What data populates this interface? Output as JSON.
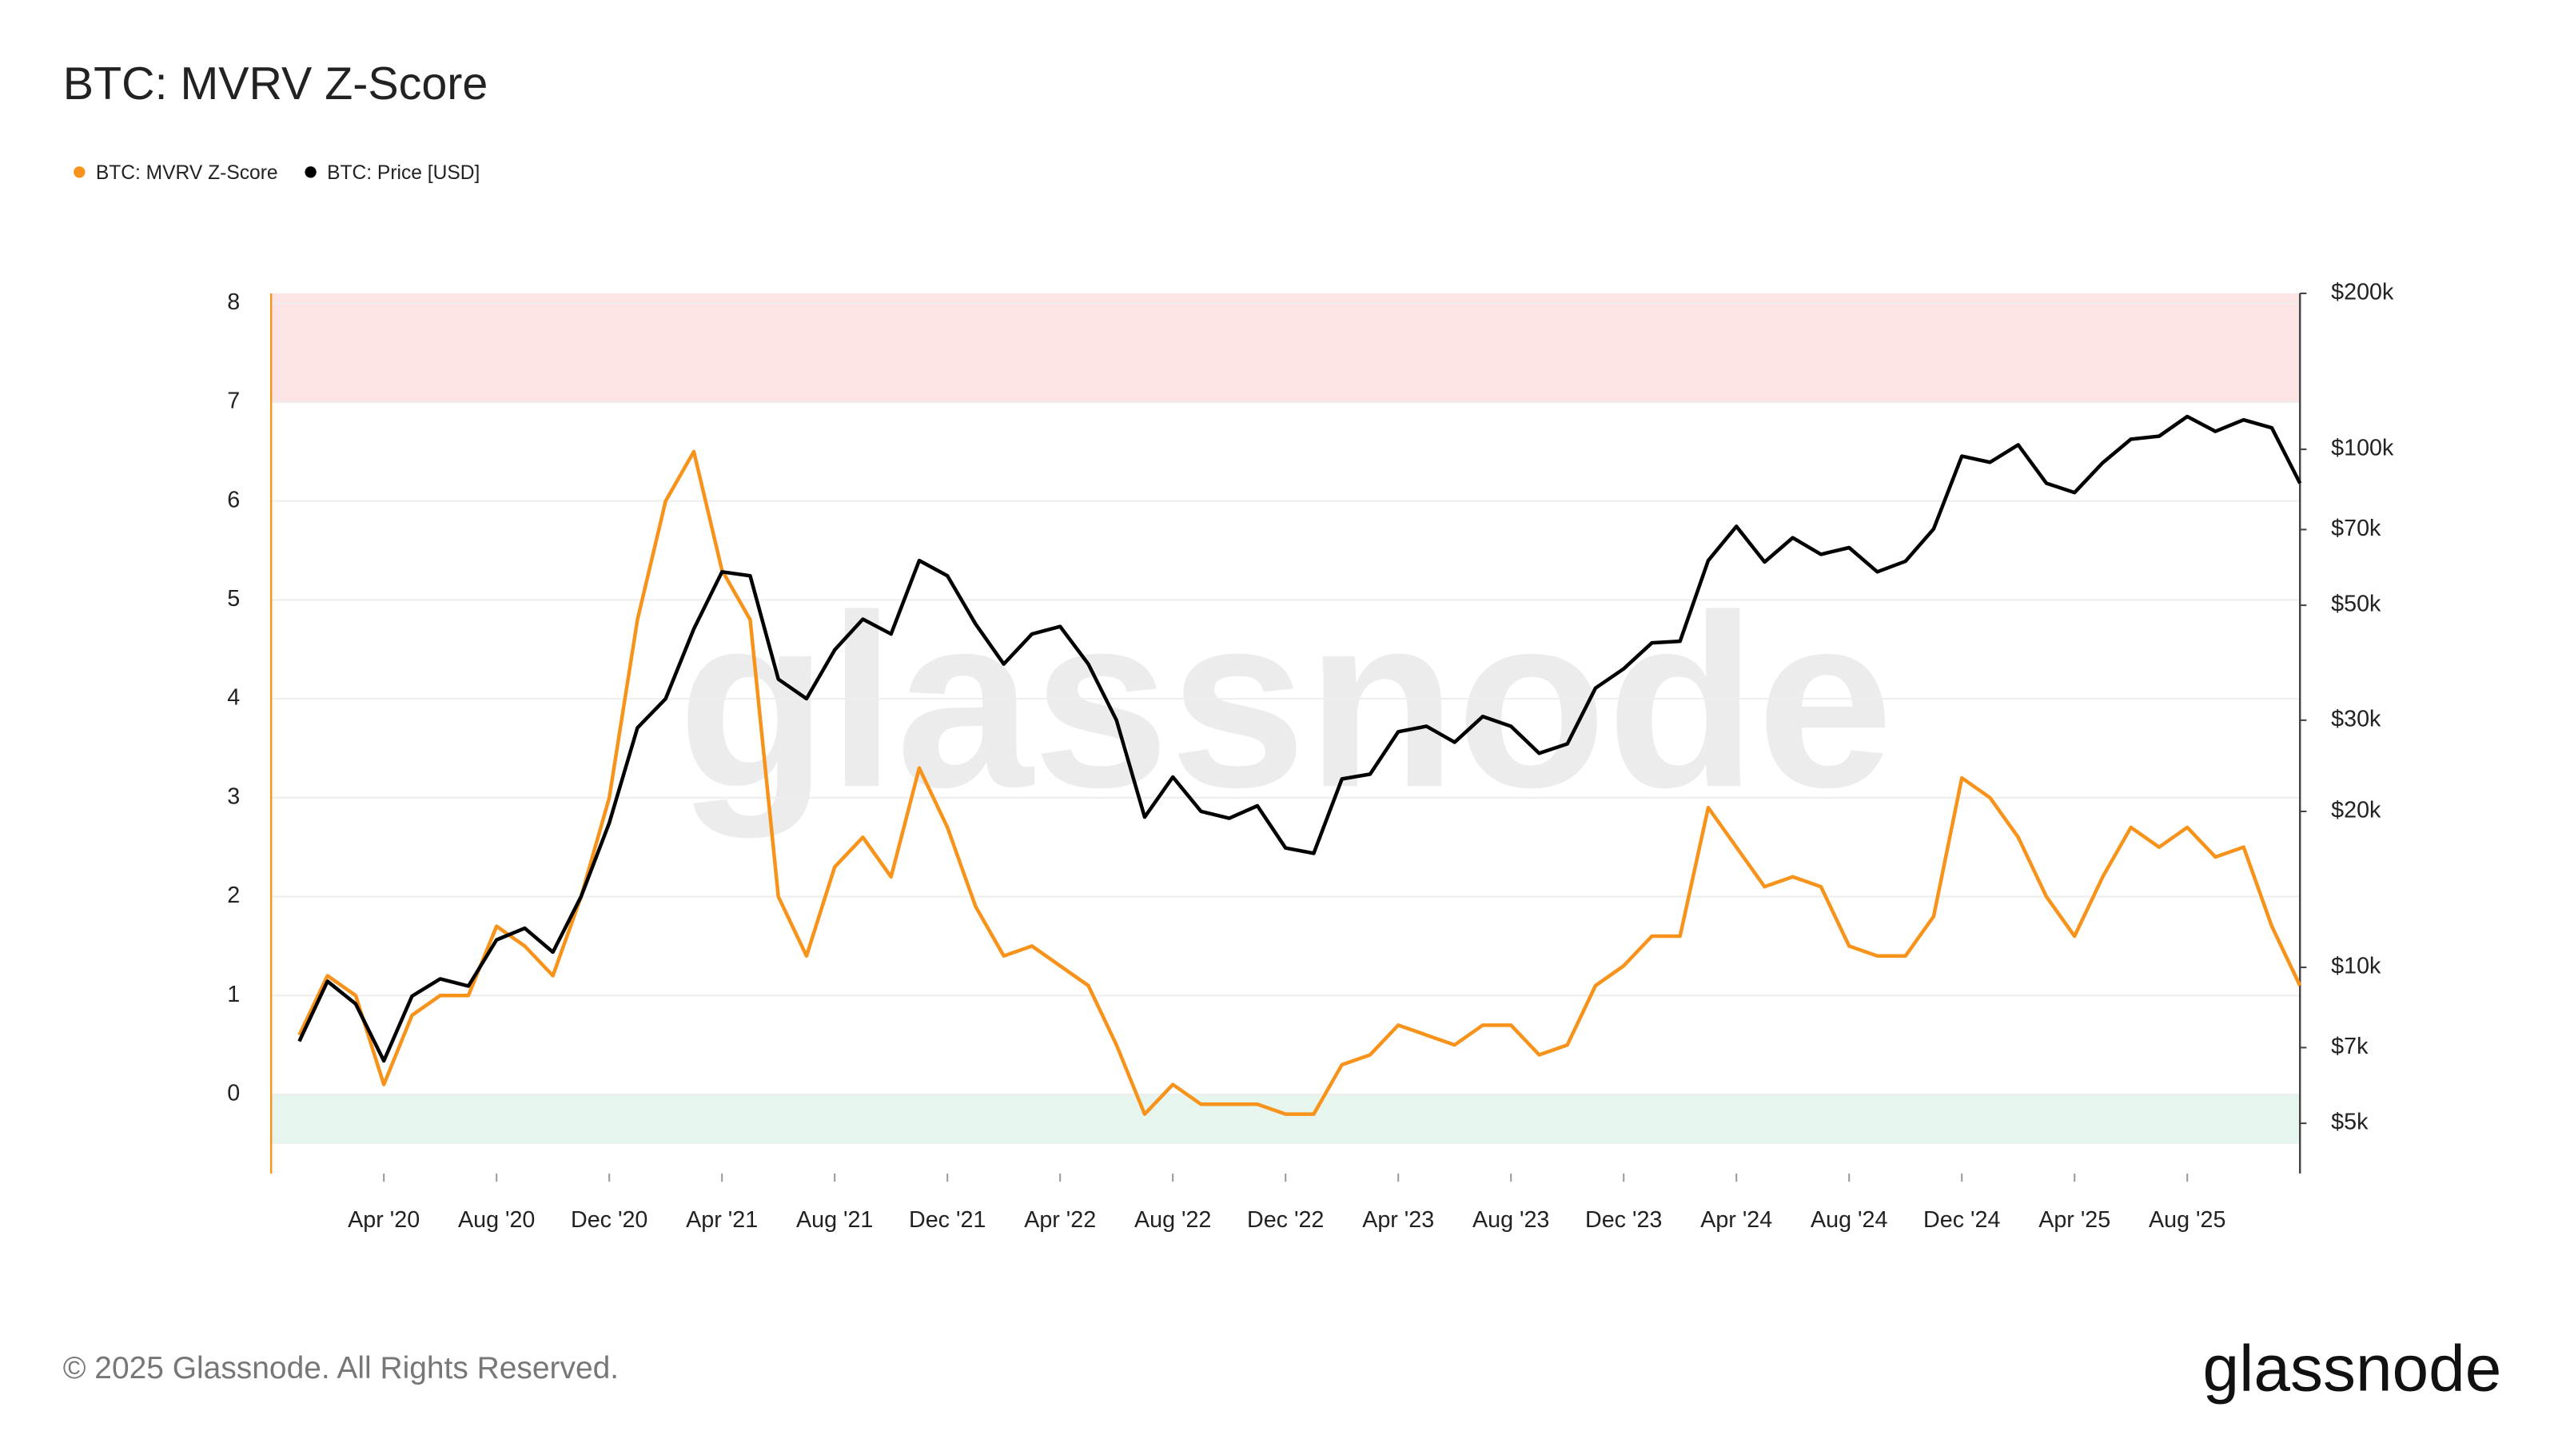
{
  "chart_data": {
    "type": "line",
    "title": "BTC: MVRV Z-Score",
    "watermark": "glassnode",
    "logo": "glassnode",
    "footer": "© 2025 Glassnode. All Rights Reserved.",
    "x": [
      "2020-01",
      "2020-02",
      "2020-03",
      "2020-04",
      "2020-05",
      "2020-06",
      "2020-07",
      "2020-08",
      "2020-09",
      "2020-10",
      "2020-11",
      "2020-12",
      "2021-01",
      "2021-02",
      "2021-03",
      "2021-04",
      "2021-05",
      "2021-06",
      "2021-07",
      "2021-08",
      "2021-09",
      "2021-10",
      "2021-11",
      "2021-12",
      "2022-01",
      "2022-02",
      "2022-03",
      "2022-04",
      "2022-05",
      "2022-06",
      "2022-07",
      "2022-08",
      "2022-09",
      "2022-10",
      "2022-11",
      "2022-12",
      "2023-01",
      "2023-02",
      "2023-03",
      "2023-04",
      "2023-05",
      "2023-06",
      "2023-07",
      "2023-08",
      "2023-09",
      "2023-10",
      "2023-11",
      "2023-12",
      "2024-01",
      "2024-02",
      "2024-03",
      "2024-04",
      "2024-05",
      "2024-06",
      "2024-07",
      "2024-08",
      "2024-09",
      "2024-10",
      "2024-11",
      "2024-12",
      "2025-01",
      "2025-02",
      "2025-03",
      "2025-04",
      "2025-05",
      "2025-06",
      "2025-07",
      "2025-08",
      "2025-09",
      "2025-10",
      "2025-11",
      "2025-12"
    ],
    "series": [
      {
        "name": "BTC: MVRV Z-Score",
        "color": "#f7931a",
        "axis": "y",
        "values": [
          0.6,
          1.2,
          1.0,
          0.1,
          0.8,
          1.0,
          1.0,
          1.7,
          1.5,
          1.2,
          2.0,
          3.0,
          4.8,
          6.0,
          6.5,
          5.3,
          4.8,
          2.0,
          1.4,
          2.3,
          2.6,
          2.2,
          3.3,
          2.7,
          1.9,
          1.4,
          1.5,
          1.3,
          1.1,
          0.5,
          -0.2,
          0.1,
          -0.1,
          -0.1,
          -0.1,
          -0.2,
          -0.2,
          0.3,
          0.4,
          0.7,
          0.6,
          0.5,
          0.7,
          0.7,
          0.4,
          0.5,
          1.1,
          1.3,
          1.6,
          1.6,
          2.9,
          2.5,
          2.1,
          2.2,
          2.1,
          1.5,
          1.4,
          1.4,
          1.8,
          3.2,
          3.0,
          2.6,
          2.0,
          1.6,
          2.2,
          2.7,
          2.5,
          2.7,
          2.4,
          2.5,
          1.7,
          1.1
        ]
      },
      {
        "name": "BTC: Price [USD]",
        "color": "#000000",
        "axis": "y2",
        "values": [
          7200,
          9400,
          8500,
          6600,
          8800,
          9500,
          9200,
          11300,
          11900,
          10700,
          13700,
          19000,
          29000,
          33000,
          45000,
          58000,
          57000,
          36000,
          33000,
          41000,
          47000,
          44000,
          61000,
          57000,
          46000,
          38500,
          44000,
          45500,
          38500,
          30000,
          19500,
          23300,
          20000,
          19400,
          20500,
          17000,
          16600,
          23100,
          23600,
          28500,
          29200,
          27200,
          30500,
          29200,
          25900,
          27000,
          34600,
          37700,
          42300,
          42600,
          61000,
          71000,
          60600,
          67500,
          62700,
          64600,
          58000,
          60800,
          70200,
          97000,
          94400,
          102000,
          86000,
          82500,
          94200,
          104600,
          106000,
          115700,
          108300,
          114000,
          110000,
          86000
        ]
      }
    ],
    "xlim": [
      "2019-12",
      "2025-12"
    ],
    "xticks": [
      {
        "value": "2020-04",
        "label": "Apr '20"
      },
      {
        "value": "2020-08",
        "label": "Aug '20"
      },
      {
        "value": "2020-12",
        "label": "Dec '20"
      },
      {
        "value": "2021-04",
        "label": "Apr '21"
      },
      {
        "value": "2021-08",
        "label": "Aug '21"
      },
      {
        "value": "2021-12",
        "label": "Dec '21"
      },
      {
        "value": "2022-04",
        "label": "Apr '22"
      },
      {
        "value": "2022-08",
        "label": "Aug '22"
      },
      {
        "value": "2022-12",
        "label": "Dec '22"
      },
      {
        "value": "2023-04",
        "label": "Apr '23"
      },
      {
        "value": "2023-08",
        "label": "Aug '23"
      },
      {
        "value": "2023-12",
        "label": "Dec '23"
      },
      {
        "value": "2024-04",
        "label": "Apr '24"
      },
      {
        "value": "2024-08",
        "label": "Aug '24"
      },
      {
        "value": "2024-12",
        "label": "Dec '24"
      },
      {
        "value": "2025-04",
        "label": "Apr '25"
      },
      {
        "value": "2025-08",
        "label": "Aug '25"
      }
    ],
    "ylim": [
      -0.8,
      8.1
    ],
    "yticks": [
      0,
      1,
      2,
      3,
      4,
      5,
      6,
      7,
      8
    ],
    "y2lim": [
      4000,
      200000
    ],
    "y2log": true,
    "y2ticks": [
      {
        "value": 5000,
        "label": "$5k"
      },
      {
        "value": 7000,
        "label": "$7k"
      },
      {
        "value": 10000,
        "label": "$10k"
      },
      {
        "value": 20000,
        "label": "$20k"
      },
      {
        "value": 30000,
        "label": "$30k"
      },
      {
        "value": 50000,
        "label": "$50k"
      },
      {
        "value": 70000,
        "label": "$70k"
      },
      {
        "value": 100000,
        "label": "$100k"
      },
      {
        "value": 200000,
        "label": "$200k"
      }
    ],
    "grid": true,
    "legend": "top-left",
    "bands": [
      {
        "from": 7,
        "to": 8.1,
        "color": "#fde4e4"
      },
      {
        "from": -0.5,
        "to": 0,
        "color": "#e6f5ed"
      }
    ]
  }
}
